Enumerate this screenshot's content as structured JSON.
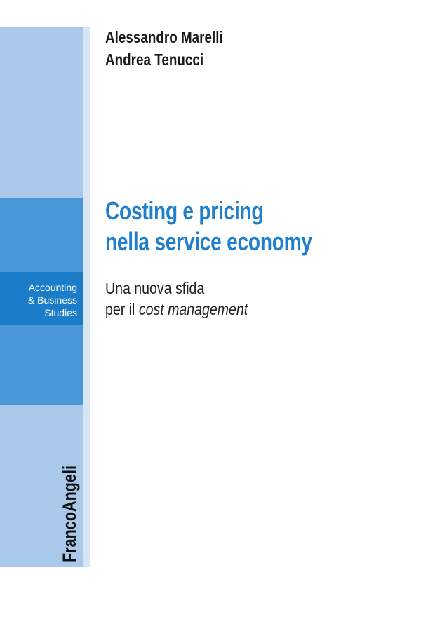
{
  "authors": [
    "Alessandro Marelli",
    "Andrea Tenucci"
  ],
  "title": [
    "Costing e pricing",
    "nella service economy"
  ],
  "subtitle": {
    "line1": "Una nuova sfida",
    "line2_plain": "per il",
    "line2_italic": "cost management"
  },
  "series": [
    "Accounting",
    "& Business",
    "Studies"
  ],
  "publisher": "FrancoAngeli"
}
